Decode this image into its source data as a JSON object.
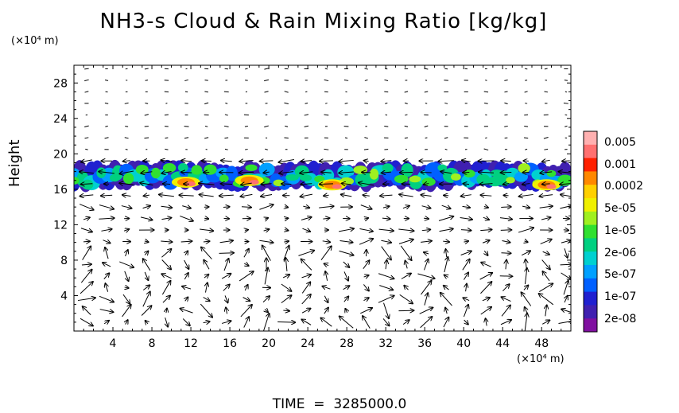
{
  "header": {
    "title": "NH3-s Cloud & Rain Mixing Ratio [kg/kg]",
    "y_units": "(×10⁴ m)",
    "x_units": "(×10⁴ m)",
    "y_label": "Height",
    "time_label": "TIME",
    "time_value": "3285000.0"
  },
  "chart_data": {
    "type": "heatmap",
    "title": "NH3-s Cloud & Rain Mixing Ratio [kg/kg]",
    "xlabel": "(×10⁴ m)",
    "ylabel": "Height",
    "xlim": [
      0,
      51
    ],
    "ylim": [
      0,
      30
    ],
    "x_ticks": [
      4,
      8,
      12,
      16,
      20,
      24,
      28,
      32,
      36,
      40,
      44,
      48
    ],
    "y_ticks": [
      4,
      8,
      12,
      16,
      20,
      24,
      28
    ],
    "colorbar": {
      "labels": [
        "0.005",
        "0.001",
        "0.0002",
        "5e-05",
        "1e-05",
        "2e-06",
        "5e-07",
        "1e-07",
        "2e-08"
      ],
      "colors": [
        "#ffb0b0",
        "#ff7070",
        "#ff2000",
        "#ff8800",
        "#ffd000",
        "#f0f000",
        "#a0f020",
        "#30e030",
        "#00d080",
        "#00d0d0",
        "#00a0ff",
        "#0060ff",
        "#2020d0",
        "#4020b0",
        "#8010a0"
      ]
    },
    "cloud_layer": {
      "height_range": [
        15.8,
        19.2
      ],
      "x_range": [
        0,
        51
      ],
      "max_value_locations": [
        {
          "x": 11.5,
          "y": 16.8,
          "value": "0.001"
        },
        {
          "x": 26.5,
          "y": 16.5,
          "value": "0.001"
        },
        {
          "x": 48.5,
          "y": 16.5,
          "value": "0.001"
        },
        {
          "x": 18,
          "y": 17,
          "value": "0.001"
        }
      ]
    },
    "wind_field": "vector arrows on a regular grid across the domain",
    "grid": false
  }
}
